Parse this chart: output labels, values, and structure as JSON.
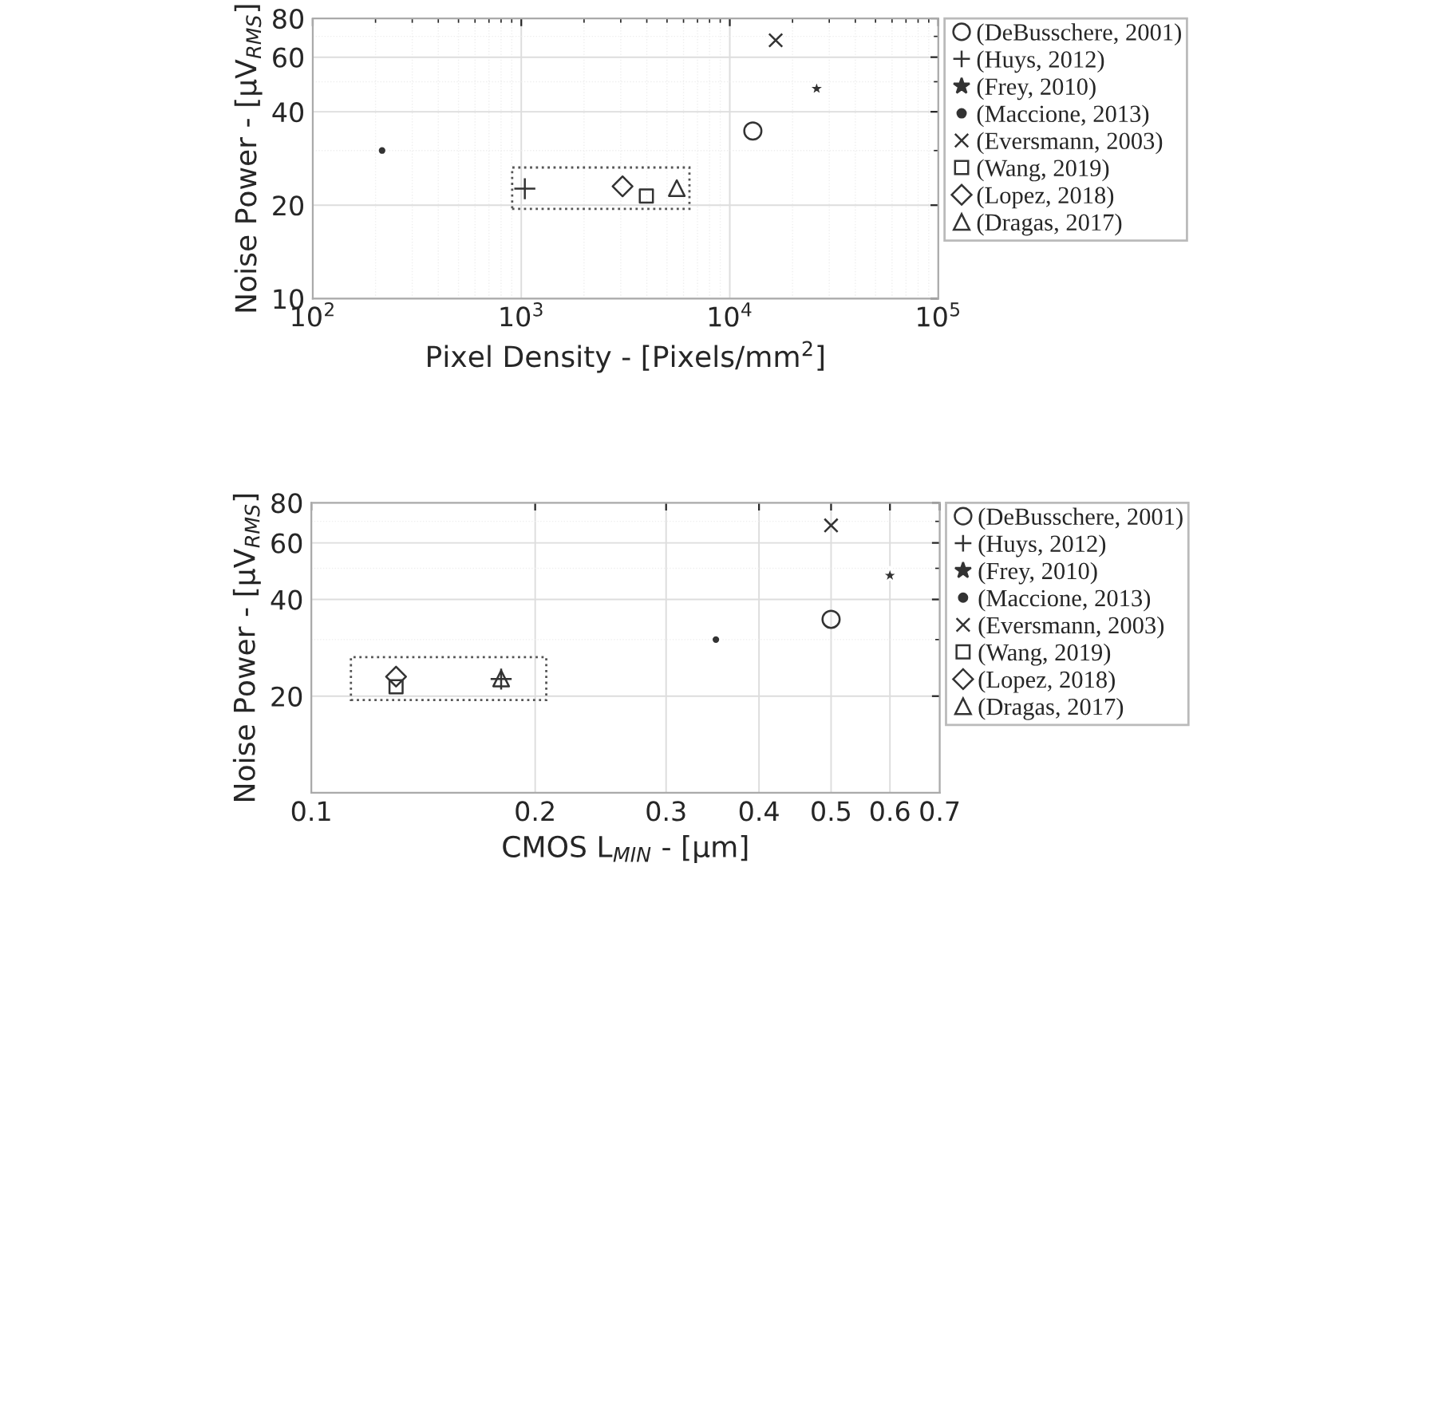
{
  "chart_data": [
    {
      "type": "scatter",
      "xlabel": "Pixel Density - [Pixels/mm$^{2}$]",
      "ylabel": "Noise Power - [μV$_{RMS}$]",
      "log": "xy",
      "grid": true,
      "legend": "right",
      "xlim": [
        100,
        100000
      ],
      "xticks": [
        {
          "value": 100,
          "label": "10$^{2}$"
        },
        {
          "value": 1000,
          "label": "10$^{3}$"
        },
        {
          "value": 10000,
          "label": "10$^{4}$"
        },
        {
          "value": 100000,
          "label": "10$^{5}$"
        }
      ],
      "ylim": [
        10,
        80
      ],
      "yticks": [
        10,
        20,
        40,
        60,
        80
      ],
      "series": [
        {
          "name": "(DeBusschere, 2001)",
          "color": "#333333",
          "marker": "circle",
          "x": [
            12900
          ],
          "values": [
            34.7
          ]
        },
        {
          "name": "(Huys, 2012)",
          "color": "#333333",
          "marker": "plus",
          "x": [
            1040
          ],
          "values": [
            22.6
          ]
        },
        {
          "name": "(Frey, 2010)",
          "color": "#333333",
          "marker": "star",
          "x": [
            26100
          ],
          "values": [
            47.5
          ]
        },
        {
          "name": "(Maccione, 2013)",
          "color": "#333333",
          "marker": "point",
          "x": [
            215
          ],
          "values": [
            30
          ]
        },
        {
          "name": "(Eversmann, 2003)",
          "color": "#333333",
          "marker": "cross",
          "x": [
            16600
          ],
          "values": [
            68
          ]
        },
        {
          "name": "(Wang, 2019)",
          "color": "#333333",
          "marker": "square",
          "x": [
            3980
          ],
          "values": [
            21.4
          ]
        },
        {
          "name": "(Lopez, 2018)",
          "color": "#333333",
          "marker": "diamond",
          "x": [
            3060
          ],
          "values": [
            23
          ]
        },
        {
          "name": "(Dragas, 2017)",
          "color": "#333333",
          "marker": "triangle",
          "x": [
            5570
          ],
          "values": [
            22.7
          ]
        }
      ]
    },
    {
      "type": "scatter",
      "xlabel": "CMOS L$_{MIN}$ - [μm]",
      "ylabel": "Noise Power - [μV$_{RMS}$]",
      "log": "xy",
      "grid": true,
      "legend": "right",
      "xlim": [
        0.1,
        0.7
      ],
      "xticks": [
        0.1,
        0.2,
        0.3,
        0.4,
        0.5,
        0.6,
        0.7
      ],
      "ylim": [
        10,
        80
      ],
      "yticks": [
        20,
        40,
        60,
        80
      ],
      "series": [
        {
          "name": "(DeBusschere, 2001)",
          "color": "#333333",
          "marker": "circle",
          "x": [
            0.5
          ],
          "values": [
            34.7
          ]
        },
        {
          "name": "(Huys, 2012)",
          "color": "#333333",
          "marker": "plus",
          "x": [
            0.18
          ],
          "values": [
            22.6
          ]
        },
        {
          "name": "(Frey, 2010)",
          "color": "#333333",
          "marker": "star",
          "x": [
            0.6
          ],
          "values": [
            47.5
          ]
        },
        {
          "name": "(Maccione, 2013)",
          "color": "#333333",
          "marker": "point",
          "x": [
            0.35
          ],
          "values": [
            30
          ]
        },
        {
          "name": "(Eversmann, 2003)",
          "color": "#333333",
          "marker": "cross",
          "x": [
            0.5
          ],
          "values": [
            68
          ]
        },
        {
          "name": "(Wang, 2019)",
          "color": "#333333",
          "marker": "square",
          "x": [
            0.13
          ],
          "values": [
            21.4
          ]
        },
        {
          "name": "(Lopez, 2018)",
          "color": "#333333",
          "marker": "diamond",
          "x": [
            0.13
          ],
          "values": [
            23
          ]
        },
        {
          "name": "(Dragas, 2017)",
          "color": "#333333",
          "marker": "triangle",
          "x": [
            0.18
          ],
          "values": [
            22.7
          ]
        }
      ]
    }
  ]
}
